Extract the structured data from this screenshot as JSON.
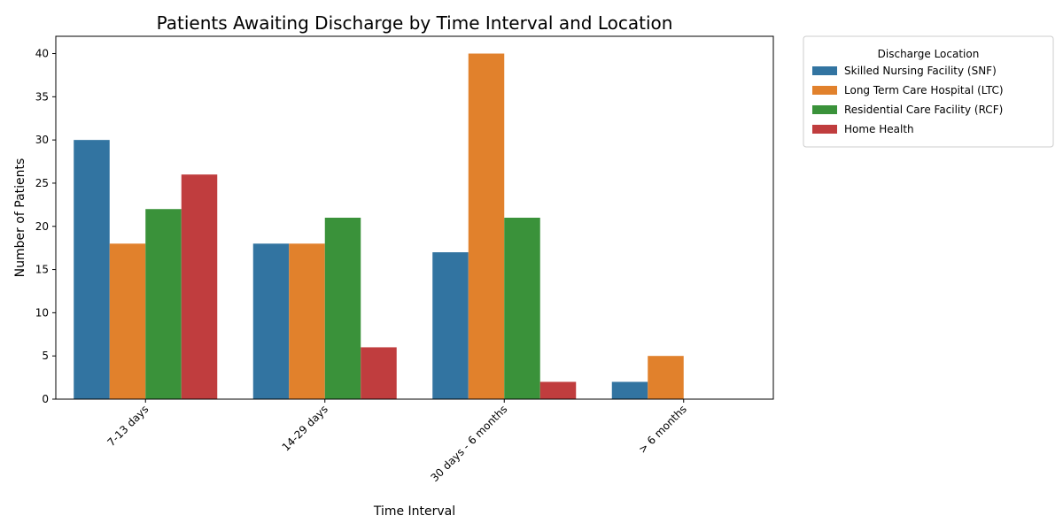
{
  "chart_data": {
    "type": "bar",
    "title": "Patients Awaiting Discharge by Time Interval and Location",
    "xlabel": "Time Interval",
    "ylabel": "Number of Patients",
    "categories": [
      "7-13 days",
      "14-29 days",
      "30 days - 6 months",
      "> 6 months"
    ],
    "series": [
      {
        "name": "Skilled Nursing Facility (SNF)",
        "color": "#3274a1",
        "values": [
          30,
          18,
          17,
          2
        ]
      },
      {
        "name": "Long Term Care Hospital (LTC)",
        "color": "#e1812c",
        "values": [
          18,
          18,
          40,
          5
        ]
      },
      {
        "name": "Residential Care Facility (RCF)",
        "color": "#3a923a",
        "values": [
          22,
          21,
          21,
          0
        ]
      },
      {
        "name": "Home Health",
        "color": "#c03d3e",
        "values": [
          26,
          6,
          2,
          0
        ]
      }
    ],
    "ylim": [
      0,
      42
    ],
    "yticks": [
      0,
      5,
      10,
      15,
      20,
      25,
      30,
      35,
      40
    ],
    "grid": false,
    "legend": {
      "title": "Discharge Location",
      "placement": "outside-top-right"
    }
  }
}
